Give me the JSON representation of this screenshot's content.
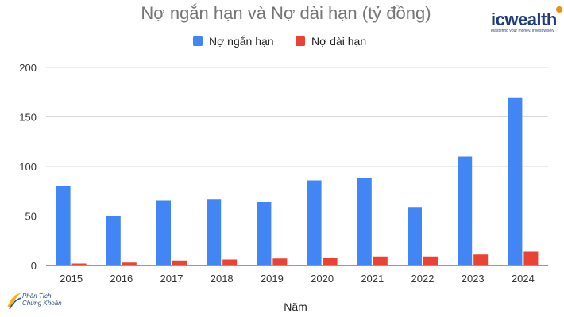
{
  "chart_data": {
    "type": "bar",
    "title": "Nợ ngắn hạn và Nợ dài hạn (tỷ đồng)",
    "xlabel": "Năm",
    "ylabel": "",
    "categories": [
      "2015",
      "2016",
      "2017",
      "2018",
      "2019",
      "2020",
      "2021",
      "2022",
      "2023",
      "2024"
    ],
    "series": [
      {
        "name": "Nợ ngắn hạn",
        "color": "#4285f4",
        "values": [
          80,
          50,
          66,
          67,
          64,
          86,
          88,
          59,
          110,
          169
        ]
      },
      {
        "name": "Nợ dài hạn",
        "color": "#ea4335",
        "values": [
          2,
          3,
          5,
          6,
          7,
          8,
          9,
          9,
          11,
          14
        ]
      }
    ],
    "ylim": [
      0,
      200
    ],
    "yticks": [
      0,
      50,
      100,
      150,
      200
    ],
    "grid": true,
    "legend_position": "top-center"
  },
  "brand": {
    "name": "icwealth",
    "tagline": "Mastering your money, invest wisely"
  },
  "watermark": {
    "line1": "Phân Tích",
    "line2": "Chứng Khoán"
  }
}
